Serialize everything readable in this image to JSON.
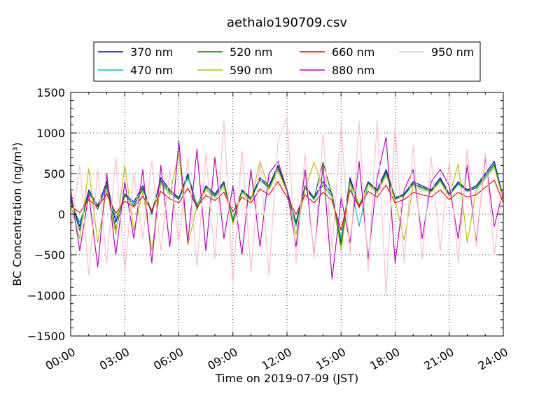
{
  "chart_data": {
    "type": "line",
    "title": "aethalo190709.csv",
    "xlabel": "Time on 2019-07-09 (JST)",
    "ylabel": "BC Concentration (ng/m³)",
    "x_unit": "hours",
    "xlim": [
      0,
      24
    ],
    "ylim": [
      -1500,
      1500
    ],
    "x_ticks": [
      0,
      3,
      6,
      9,
      12,
      15,
      18,
      21,
      24
    ],
    "x_tick_labels": [
      "00:00",
      "03:00",
      "06:00",
      "09:00",
      "12:00",
      "15:00",
      "18:00",
      "21:00",
      "24:00"
    ],
    "y_ticks": [
      -1500,
      -1000,
      -500,
      0,
      500,
      1000,
      1500
    ],
    "y_tick_labels": [
      "−1500",
      "−1000",
      "−500",
      "0",
      "500",
      "1000",
      "1500"
    ],
    "grid": true,
    "legend_position": "top",
    "series": [
      {
        "name": "370 nm",
        "color": "#0000ff",
        "x": [
          0.0,
          0.5,
          1.0,
          1.5,
          2.0,
          2.5,
          3.0,
          3.5,
          4.0,
          4.5,
          5.0,
          5.5,
          6.0,
          6.5,
          7.0,
          7.5,
          8.0,
          8.5,
          9.0,
          9.5,
          10.0,
          10.5,
          11.0,
          11.5,
          12.0,
          12.5,
          13.0,
          13.5,
          14.0,
          14.5,
          15.0,
          15.5,
          16.0,
          16.5,
          17.0,
          17.5,
          18.0,
          18.5,
          19.0,
          19.5,
          20.0,
          20.5,
          21.0,
          21.5,
          22.0,
          22.5,
          23.0,
          23.5,
          24.0
        ],
        "y": [
          200,
          -150,
          300,
          100,
          400,
          -100,
          250,
          150,
          350,
          0,
          450,
          300,
          200,
          500,
          100,
          350,
          250,
          400,
          -100,
          300,
          200,
          450,
          350,
          600,
          300,
          -100,
          350,
          200,
          400,
          250,
          -350,
          450,
          100,
          400,
          300,
          550,
          200,
          250,
          400,
          350,
          300,
          450,
          250,
          400,
          300,
          350,
          500,
          650,
          200
        ]
      },
      {
        "name": "470 nm",
        "color": "#00bfbf",
        "x": [
          0.0,
          0.5,
          1.0,
          1.5,
          2.0,
          2.5,
          3.0,
          3.5,
          4.0,
          4.5,
          5.0,
          5.5,
          6.0,
          6.5,
          7.0,
          7.5,
          8.0,
          8.5,
          9.0,
          9.5,
          10.0,
          10.5,
          11.0,
          11.5,
          12.0,
          12.5,
          13.0,
          13.5,
          14.0,
          14.5,
          15.0,
          15.5,
          16.0,
          16.5,
          17.0,
          17.5,
          18.0,
          18.5,
          19.0,
          19.5,
          20.0,
          20.5,
          21.0,
          21.5,
          22.0,
          22.5,
          23.0,
          23.5,
          24.0
        ],
        "y": [
          150,
          -100,
          250,
          120,
          330,
          -50,
          230,
          130,
          300,
          40,
          400,
          260,
          180,
          450,
          120,
          300,
          220,
          370,
          -60,
          280,
          180,
          420,
          320,
          560,
          280,
          -150,
          320,
          180,
          360,
          220,
          -300,
          400,
          -150,
          380,
          280,
          500,
          180,
          230,
          370,
          320,
          280,
          420,
          230,
          370,
          280,
          320,
          460,
          600,
          180
        ]
      },
      {
        "name": "520 nm",
        "color": "#008000",
        "x": [
          0.0,
          0.5,
          1.0,
          1.5,
          2.0,
          2.5,
          3.0,
          3.5,
          4.0,
          4.5,
          5.0,
          5.5,
          6.0,
          6.5,
          7.0,
          7.5,
          8.0,
          8.5,
          9.0,
          9.5,
          10.0,
          10.5,
          11.0,
          11.5,
          12.0,
          12.5,
          13.0,
          13.5,
          14.0,
          14.5,
          15.0,
          15.5,
          16.0,
          16.5,
          17.0,
          17.5,
          18.0,
          18.5,
          19.0,
          19.5,
          20.0,
          20.5,
          21.0,
          21.5,
          22.0,
          22.5,
          23.0,
          23.5,
          24.0
        ],
        "y": [
          180,
          -200,
          280,
          60,
          360,
          -180,
          240,
          100,
          320,
          20,
          420,
          280,
          190,
          480,
          60,
          330,
          230,
          380,
          -80,
          290,
          190,
          430,
          330,
          580,
          290,
          -120,
          330,
          190,
          640,
          230,
          -380,
          420,
          80,
          390,
          290,
          520,
          190,
          240,
          380,
          330,
          290,
          430,
          240,
          380,
          290,
          330,
          480,
          620,
          190
        ]
      },
      {
        "name": "590 nm",
        "color": "#bfbf00",
        "x": [
          0.0,
          0.5,
          1.0,
          1.5,
          2.0,
          2.5,
          3.0,
          3.5,
          4.0,
          4.5,
          5.0,
          5.5,
          6.0,
          6.5,
          7.0,
          7.5,
          8.0,
          8.5,
          9.0,
          9.5,
          10.0,
          10.5,
          11.0,
          11.5,
          12.0,
          12.5,
          13.0,
          13.5,
          14.0,
          14.5,
          15.0,
          15.5,
          16.0,
          16.5,
          17.0,
          17.5,
          18.0,
          18.5,
          19.0,
          19.5,
          20.0,
          20.5,
          21.0,
          21.5,
          22.0,
          22.5,
          23.0,
          23.5,
          24.0
        ],
        "y": [
          120,
          -300,
          560,
          -350,
          300,
          -250,
          600,
          -200,
          280,
          -450,
          380,
          240,
          760,
          -380,
          100,
          300,
          200,
          340,
          -120,
          260,
          170,
          650,
          300,
          540,
          270,
          -250,
          310,
          640,
          340,
          210,
          -450,
          380,
          120,
          360,
          260,
          480,
          170,
          -320,
          350,
          300,
          270,
          400,
          220,
          620,
          -350,
          300,
          440,
          580,
          170
        ]
      },
      {
        "name": "660 nm",
        "color": "#ff0000",
        "x": [
          0.0,
          0.5,
          1.0,
          1.5,
          2.0,
          2.5,
          3.0,
          3.5,
          4.0,
          4.5,
          5.0,
          5.5,
          6.0,
          6.5,
          7.0,
          7.5,
          8.0,
          8.5,
          9.0,
          9.5,
          10.0,
          10.5,
          11.0,
          11.5,
          12.0,
          12.5,
          13.0,
          13.5,
          14.0,
          14.5,
          15.0,
          15.5,
          16.0,
          16.5,
          17.0,
          17.5,
          18.0,
          18.5,
          19.0,
          19.5,
          20.0,
          20.5,
          21.0,
          21.5,
          22.0,
          22.5,
          23.0,
          23.5,
          24.0
        ],
        "y": [
          100,
          20,
          180,
          90,
          250,
          10,
          160,
          90,
          220,
          50,
          280,
          190,
          140,
          320,
          90,
          230,
          170,
          270,
          30,
          210,
          140,
          310,
          240,
          400,
          210,
          0,
          240,
          140,
          270,
          170,
          -200,
          300,
          90,
          280,
          210,
          360,
          140,
          180,
          270,
          240,
          210,
          300,
          180,
          270,
          210,
          240,
          330,
          420,
          140
        ]
      },
      {
        "name": "880 nm",
        "color": "#bf00bf",
        "x": [
          0.0,
          0.5,
          1.0,
          1.5,
          2.0,
          2.5,
          3.0,
          3.5,
          4.0,
          4.5,
          5.0,
          5.5,
          6.0,
          6.5,
          7.0,
          7.5,
          8.0,
          8.5,
          9.0,
          9.5,
          10.0,
          10.5,
          11.0,
          11.5,
          12.0,
          12.5,
          13.0,
          13.5,
          14.0,
          14.5,
          15.0,
          15.5,
          16.0,
          16.5,
          17.0,
          17.5,
          18.0,
          18.5,
          19.0,
          19.5,
          20.0,
          20.5,
          21.0,
          21.5,
          22.0,
          22.5,
          23.0,
          23.5,
          24.0
        ],
        "y": [
          300,
          -450,
          250,
          -650,
          500,
          -500,
          400,
          -300,
          550,
          -600,
          600,
          -400,
          900,
          -350,
          800,
          -450,
          700,
          -300,
          350,
          -500,
          550,
          -400,
          500,
          650,
          300,
          -400,
          550,
          -500,
          600,
          -800,
          200,
          -350,
          650,
          -550,
          450,
          950,
          -600,
          300,
          550,
          -300,
          400,
          550,
          350,
          -300,
          600,
          -350,
          700,
          -150,
          300
        ]
      },
      {
        "name": "950 nm",
        "color": "#ffc0cb",
        "x": [
          0.0,
          0.5,
          1.0,
          1.5,
          2.0,
          2.5,
          3.0,
          3.5,
          4.0,
          4.5,
          5.0,
          5.5,
          6.0,
          6.5,
          7.0,
          7.5,
          8.0,
          8.5,
          9.0,
          9.5,
          10.0,
          10.5,
          11.0,
          11.5,
          12.0,
          12.5,
          13.0,
          13.5,
          14.0,
          14.5,
          15.0,
          15.5,
          16.0,
          16.5,
          17.0,
          17.5,
          18.0,
          18.5,
          19.0,
          19.5,
          20.0,
          20.5,
          21.0,
          21.5,
          22.0,
          22.5,
          23.0,
          23.5,
          24.0
        ],
        "y": [
          -200,
          600,
          -750,
          550,
          -600,
          700,
          -700,
          500,
          -300,
          650,
          -450,
          550,
          -350,
          700,
          -650,
          750,
          -550,
          1150,
          -850,
          800,
          -700,
          650,
          -750,
          900,
          1200,
          -600,
          750,
          -550,
          1000,
          -450,
          1100,
          -500,
          1150,
          -700,
          1150,
          -1000,
          1100,
          -600,
          850,
          -550,
          700,
          -450,
          650,
          -600,
          800,
          -400,
          750,
          -500,
          400
        ]
      }
    ]
  }
}
